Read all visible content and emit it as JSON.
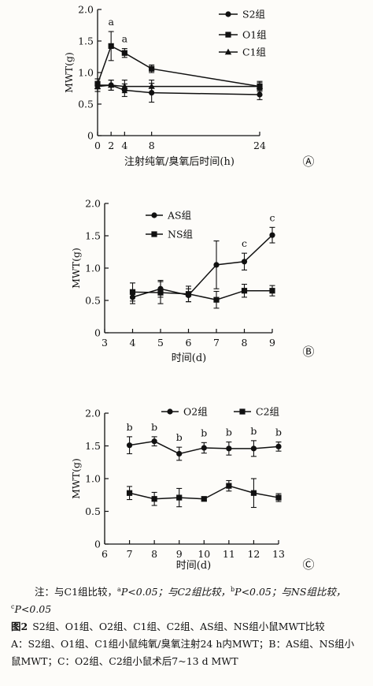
{
  "chart_data": [
    {
      "type": "line",
      "panel_label": "Ⓐ",
      "xlabel": "注射纯氧/臭氧后时间(h)",
      "ylabel": "MWT(g)",
      "x_ticks": [
        0,
        2,
        4,
        8,
        24
      ],
      "x_tick_labels": [
        "0",
        "2",
        "4",
        "8",
        "24"
      ],
      "y_ticks": [
        0,
        0.5,
        1.0,
        1.5,
        2.0
      ],
      "y_tick_labels": [
        "0",
        "0.5",
        "1.0",
        "1.5",
        "2.0"
      ],
      "xlim": [
        0,
        24
      ],
      "ylim": [
        0,
        2.0
      ],
      "legend": "top-right",
      "series": [
        {
          "name": "S2组",
          "marker": "circle",
          "x": [
            0,
            2,
            4,
            8,
            24
          ],
          "values": [
            0.8,
            0.8,
            0.72,
            0.68,
            0.65
          ],
          "errors": [
            0.1,
            0.08,
            0.1,
            0.15,
            0.08
          ]
        },
        {
          "name": "O1组",
          "marker": "square",
          "x": [
            0,
            2,
            4,
            8,
            24
          ],
          "values": [
            0.82,
            1.42,
            1.31,
            1.06,
            0.78
          ],
          "errors": [
            0.08,
            0.23,
            0.07,
            0.06,
            0.08
          ]
        },
        {
          "name": "C1组",
          "marker": "triangle",
          "x": [
            0,
            2,
            4,
            8,
            24
          ],
          "values": [
            0.78,
            0.8,
            0.78,
            0.78,
            0.78
          ],
          "errors": [
            0.08,
            0.08,
            0.1,
            0.1,
            0.06
          ]
        }
      ],
      "annotations": [
        {
          "series": 1,
          "x": 2,
          "text": "a"
        },
        {
          "series": 1,
          "x": 4,
          "text": "a"
        }
      ]
    },
    {
      "type": "line",
      "panel_label": "Ⓑ",
      "xlabel": "时间(d)",
      "ylabel": "MWT(g)",
      "x_ticks": [
        3,
        4,
        5,
        6,
        7,
        8,
        9
      ],
      "x_tick_labels": [
        "3",
        "4",
        "5",
        "6",
        "7",
        "8",
        "9"
      ],
      "y_ticks": [
        0,
        0.5,
        1.0,
        1.5,
        2.0
      ],
      "y_tick_labels": [
        "0",
        "0.5",
        "1.0",
        "1.5",
        "2.0"
      ],
      "xlim": [
        3,
        9
      ],
      "ylim": [
        0,
        2.0
      ],
      "legend": "top-left",
      "series": [
        {
          "name": "AS组",
          "marker": "circle",
          "x": [
            4,
            5,
            6,
            7,
            8,
            9
          ],
          "values": [
            0.55,
            0.68,
            0.58,
            1.05,
            1.1,
            1.51
          ],
          "errors": [
            0.1,
            0.13,
            0.1,
            0.37,
            0.13,
            0.12
          ]
        },
        {
          "name": "NS组",
          "marker": "square",
          "x": [
            4,
            5,
            6,
            7,
            8,
            9
          ],
          "values": [
            0.63,
            0.62,
            0.6,
            0.51,
            0.65,
            0.65
          ],
          "errors": [
            0.14,
            0.17,
            0.12,
            0.13,
            0.1,
            0.08
          ]
        }
      ],
      "annotations": [
        {
          "series": 0,
          "x": 8,
          "text": "c"
        },
        {
          "series": 0,
          "x": 9,
          "text": "c"
        }
      ]
    },
    {
      "type": "line",
      "panel_label": "Ⓒ",
      "xlabel": "时间(d)",
      "ylabel": "MWT(g)",
      "x_ticks": [
        6,
        7,
        8,
        9,
        10,
        11,
        12,
        13
      ],
      "x_tick_labels": [
        "6",
        "7",
        "8",
        "9",
        "10",
        "11",
        "12",
        "13"
      ],
      "y_ticks": [
        0,
        0.5,
        1.0,
        1.5,
        2.0
      ],
      "y_tick_labels": [
        "0",
        "0.5",
        "1.0",
        "1.5",
        "2.0"
      ],
      "xlim": [
        6,
        13
      ],
      "ylim": [
        0,
        2.0
      ],
      "legend": "top",
      "series": [
        {
          "name": "O2组",
          "marker": "circle",
          "x": [
            7,
            8,
            9,
            10,
            11,
            12,
            13
          ],
          "values": [
            1.51,
            1.57,
            1.38,
            1.47,
            1.46,
            1.46,
            1.49
          ],
          "errors": [
            0.13,
            0.07,
            0.1,
            0.08,
            0.1,
            0.12,
            0.07
          ]
        },
        {
          "name": "C2组",
          "marker": "square",
          "x": [
            7,
            8,
            9,
            10,
            11,
            12,
            13
          ],
          "values": [
            0.78,
            0.69,
            0.71,
            0.69,
            0.89,
            0.78,
            0.71
          ],
          "errors": [
            0.1,
            0.1,
            0.14,
            0.03,
            0.08,
            0.22,
            0.06
          ]
        }
      ],
      "annotations": [
        {
          "series": 0,
          "x": 7,
          "text": "b"
        },
        {
          "series": 0,
          "x": 8,
          "text": "b"
        },
        {
          "series": 0,
          "x": 9,
          "text": "b"
        },
        {
          "series": 0,
          "x": 10,
          "text": "b"
        },
        {
          "series": 0,
          "x": 11,
          "text": "b"
        },
        {
          "series": 0,
          "x": 12,
          "text": "b"
        },
        {
          "series": 0,
          "x": 13,
          "text": "b"
        }
      ]
    }
  ],
  "notes": {
    "prefix": "注：与C1组比较，",
    "sup_a": "a",
    "p1": "P<0.05；与C2组比较，",
    "sup_b": "b",
    "p2": "P<0.05；与NS组比较，",
    "sup_c": "c",
    "p3": "P<0.05"
  },
  "caption": {
    "label": "图2",
    "title": "S2组、O1组、O2组、C1组、C2组、AS组、NS组小鼠MWT比较",
    "body": "A：S2组、O1组、C1组小鼠纯氧/臭氧注射24 h内MWT；B：AS组、NS组小鼠MWT；C：O2组、C2组小鼠术后7~13 d MWT"
  }
}
